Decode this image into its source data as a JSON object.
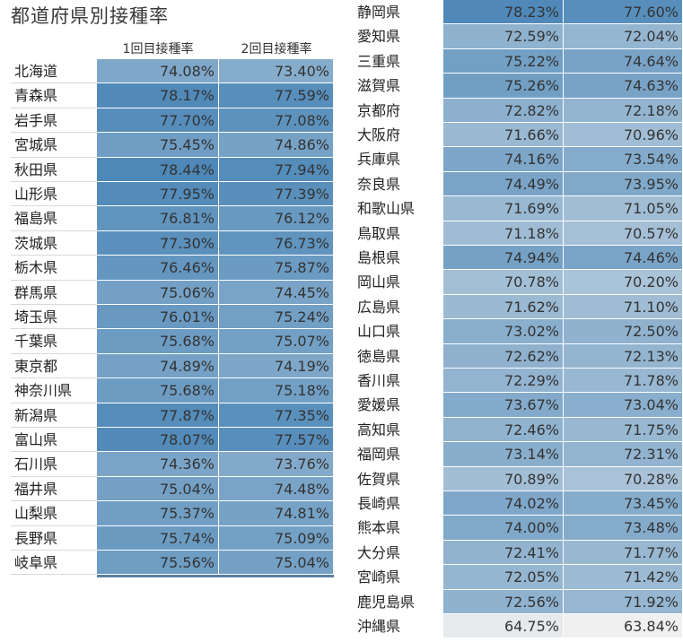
{
  "title": "都道府県別接種率",
  "columns": [
    "1回目接種率",
    "2回目接種率"
  ],
  "chart_data": {
    "type": "table",
    "title": "都道府県別接種率",
    "columns": [
      "1回目接種率",
      "2回目接種率"
    ],
    "rows": [
      {
        "pref": "北海道",
        "v1": "74.08%",
        "v2": "73.40%"
      },
      {
        "pref": "青森県",
        "v1": "78.17%",
        "v2": "77.59%"
      },
      {
        "pref": "岩手県",
        "v1": "77.70%",
        "v2": "77.08%"
      },
      {
        "pref": "宮城県",
        "v1": "75.45%",
        "v2": "74.86%"
      },
      {
        "pref": "秋田県",
        "v1": "78.44%",
        "v2": "77.94%"
      },
      {
        "pref": "山形県",
        "v1": "77.95%",
        "v2": "77.39%"
      },
      {
        "pref": "福島県",
        "v1": "76.81%",
        "v2": "76.12%"
      },
      {
        "pref": "茨城県",
        "v1": "77.30%",
        "v2": "76.73%"
      },
      {
        "pref": "栃木県",
        "v1": "76.46%",
        "v2": "75.87%"
      },
      {
        "pref": "群馬県",
        "v1": "75.06%",
        "v2": "74.45%"
      },
      {
        "pref": "埼玉県",
        "v1": "76.01%",
        "v2": "75.24%"
      },
      {
        "pref": "千葉県",
        "v1": "75.68%",
        "v2": "75.07%"
      },
      {
        "pref": "東京都",
        "v1": "74.89%",
        "v2": "74.19%"
      },
      {
        "pref": "神奈川県",
        "v1": "75.68%",
        "v2": "75.18%"
      },
      {
        "pref": "新潟県",
        "v1": "77.87%",
        "v2": "77.35%"
      },
      {
        "pref": "富山県",
        "v1": "78.07%",
        "v2": "77.57%"
      },
      {
        "pref": "石川県",
        "v1": "74.36%",
        "v2": "73.76%"
      },
      {
        "pref": "福井県",
        "v1": "75.04%",
        "v2": "74.48%"
      },
      {
        "pref": "山梨県",
        "v1": "75.37%",
        "v2": "74.81%"
      },
      {
        "pref": "長野県",
        "v1": "75.74%",
        "v2": "75.09%"
      },
      {
        "pref": "岐阜県",
        "v1": "75.56%",
        "v2": "75.04%"
      },
      {
        "pref": "静岡県",
        "v1": "78.23%",
        "v2": "77.60%"
      },
      {
        "pref": "愛知県",
        "v1": "72.59%",
        "v2": "72.04%"
      },
      {
        "pref": "三重県",
        "v1": "75.22%",
        "v2": "74.64%"
      },
      {
        "pref": "滋賀県",
        "v1": "75.26%",
        "v2": "74.63%"
      },
      {
        "pref": "京都府",
        "v1": "72.82%",
        "v2": "72.18%"
      },
      {
        "pref": "大阪府",
        "v1": "71.66%",
        "v2": "70.96%"
      },
      {
        "pref": "兵庫県",
        "v1": "74.16%",
        "v2": "73.54%"
      },
      {
        "pref": "奈良県",
        "v1": "74.49%",
        "v2": "73.95%"
      },
      {
        "pref": "和歌山県",
        "v1": "71.69%",
        "v2": "71.05%"
      },
      {
        "pref": "鳥取県",
        "v1": "71.18%",
        "v2": "70.57%"
      },
      {
        "pref": "島根県",
        "v1": "74.94%",
        "v2": "74.46%"
      },
      {
        "pref": "岡山県",
        "v1": "70.78%",
        "v2": "70.20%"
      },
      {
        "pref": "広島県",
        "v1": "71.62%",
        "v2": "71.10%"
      },
      {
        "pref": "山口県",
        "v1": "73.02%",
        "v2": "72.50%"
      },
      {
        "pref": "徳島県",
        "v1": "72.62%",
        "v2": "72.13%"
      },
      {
        "pref": "香川県",
        "v1": "72.29%",
        "v2": "71.78%"
      },
      {
        "pref": "愛媛県",
        "v1": "73.67%",
        "v2": "73.04%"
      },
      {
        "pref": "高知県",
        "v1": "72.46%",
        "v2": "71.75%"
      },
      {
        "pref": "福岡県",
        "v1": "73.14%",
        "v2": "72.31%"
      },
      {
        "pref": "佐賀県",
        "v1": "70.89%",
        "v2": "70.28%"
      },
      {
        "pref": "長崎県",
        "v1": "74.02%",
        "v2": "73.45%"
      },
      {
        "pref": "熊本県",
        "v1": "74.00%",
        "v2": "73.48%"
      },
      {
        "pref": "大分県",
        "v1": "72.41%",
        "v2": "71.77%"
      },
      {
        "pref": "宮崎県",
        "v1": "72.05%",
        "v2": "71.42%"
      },
      {
        "pref": "鹿児島県",
        "v1": "72.56%",
        "v2": "71.92%"
      },
      {
        "pref": "沖縄県",
        "v1": "64.75%",
        "v2": "63.84%"
      }
    ],
    "color_scale": {
      "low": "#f0f0f0",
      "high": "#4e88b8"
    }
  }
}
